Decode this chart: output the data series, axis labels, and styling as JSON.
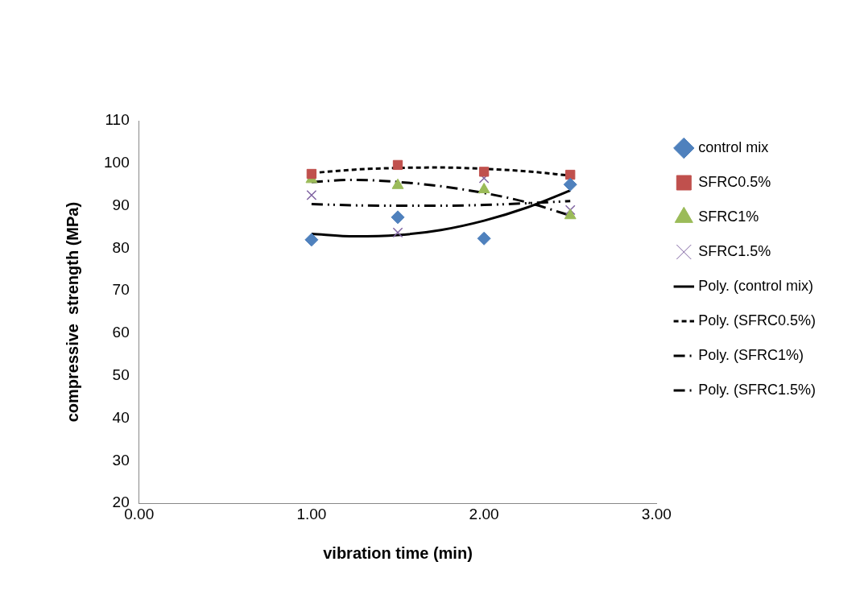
{
  "chart_data": {
    "type": "scatter",
    "xlabel": "vibration time (min)",
    "ylabel": "compressive  strength (MPa)",
    "xlim": [
      0,
      3
    ],
    "xticks": [
      {
        "value": 0,
        "label": "0.00"
      },
      {
        "value": 1,
        "label": "1.00"
      },
      {
        "value": 2,
        "label": "2.00"
      },
      {
        "value": 3,
        "label": "3.00"
      }
    ],
    "ylim": [
      20,
      110
    ],
    "yticks": [
      20,
      30,
      40,
      50,
      60,
      70,
      80,
      90,
      100,
      110
    ],
    "grid": false,
    "legend": "right",
    "x": [
      1,
      1.5,
      2,
      2.5
    ],
    "series": [
      {
        "name": "control mix",
        "color": "#4f81bd",
        "marker": "diamond",
        "values": [
          82,
          87.3,
          82.3,
          95
        ]
      },
      {
        "name": "SFRC0.5%",
        "color": "#c0504d",
        "marker": "square",
        "values": [
          97.5,
          99.6,
          98,
          97.3
        ]
      },
      {
        "name": "SFRC1%",
        "color": "#9bbb59",
        "marker": "triangle",
        "values": [
          96.2,
          94.8,
          93.8,
          87.7
        ]
      },
      {
        "name": "SFRC1.5%",
        "color": "#8064a2",
        "marker": "cross",
        "values": [
          92.5,
          83.7,
          96.5,
          89
        ]
      },
      {
        "name": "Poly. (control mix)",
        "type": "line",
        "color": "#000000",
        "line_style": "solid",
        "marker": "none",
        "x": [
          1,
          1.25,
          1.5,
          1.75,
          2,
          2.25,
          2.5
        ],
        "values": [
          83.4,
          82.8,
          83.1,
          84.3,
          86.5,
          89.6,
          93.6
        ]
      },
      {
        "name": "Poly. (SFRC0.5%)",
        "type": "line",
        "color": "#000000",
        "line_style": "dashed",
        "marker": "none",
        "x": [
          1,
          1.25,
          1.5,
          1.75,
          2,
          2.25,
          2.5
        ],
        "values": [
          97.7,
          98.5,
          98.9,
          99.0,
          98.7,
          98.1,
          97.1
        ]
      },
      {
        "name": "Poly. (SFRC1%)",
        "type": "line",
        "color": "#000000",
        "line_style": "dashdot",
        "marker": "none",
        "x": [
          1,
          1.25,
          1.5,
          1.75,
          2,
          2.25,
          2.5
        ],
        "values": [
          95.6,
          96.1,
          95.6,
          94.6,
          93.0,
          90.8,
          87.7
        ]
      },
      {
        "name": "Poly. (SFRC1.5%)",
        "type": "line",
        "color": "#000000",
        "line_style": "dashdotdot",
        "marker": "none",
        "x": [
          1,
          1.25,
          1.5,
          1.75,
          2,
          2.25,
          2.5
        ],
        "values": [
          90.4,
          90.1,
          90.0,
          90.0,
          90.2,
          90.6,
          91.1
        ]
      }
    ]
  }
}
